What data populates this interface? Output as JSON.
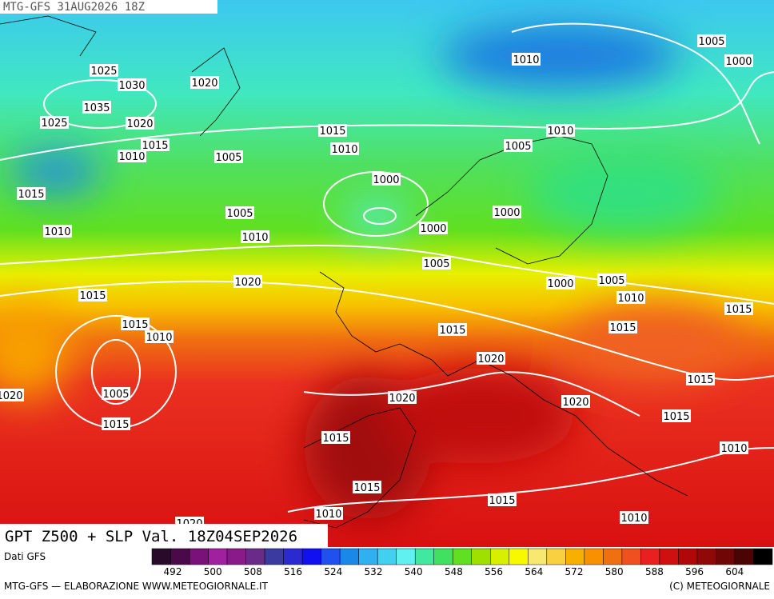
{
  "header": {
    "run": "MTG-GFS 31AUG2026 18Z"
  },
  "title": "GPT Z500 + SLP Val. 18Z04SEP2026",
  "isobar_labels": [
    1025,
    1030,
    1020,
    1035,
    1025,
    1020,
    1015,
    1010,
    1005,
    1015,
    1010,
    1010,
    1005,
    1000,
    1010,
    1005,
    1000,
    1015,
    1005,
    1000,
    1010,
    1000,
    1010,
    1005,
    1020,
    1000,
    1005,
    1010,
    1015,
    1015,
    1015,
    1010,
    1015,
    1015,
    1020,
    1005,
    1020,
    1020,
    1020,
    1015,
    1015,
    1015,
    1015,
    1010,
    1015,
    1015,
    1010,
    1010,
    1020
  ],
  "legend": {
    "source": "Dati GFS",
    "ticks": [
      492,
      500,
      508,
      516,
      524,
      532,
      540,
      548,
      556,
      564,
      572,
      580,
      588,
      596,
      604
    ]
  },
  "footer": {
    "left": "MTG-GFS — ELABORAZIONE WWW.METEOGIORNALE.IT",
    "right": "(C) METEOGIORNALE"
  }
}
